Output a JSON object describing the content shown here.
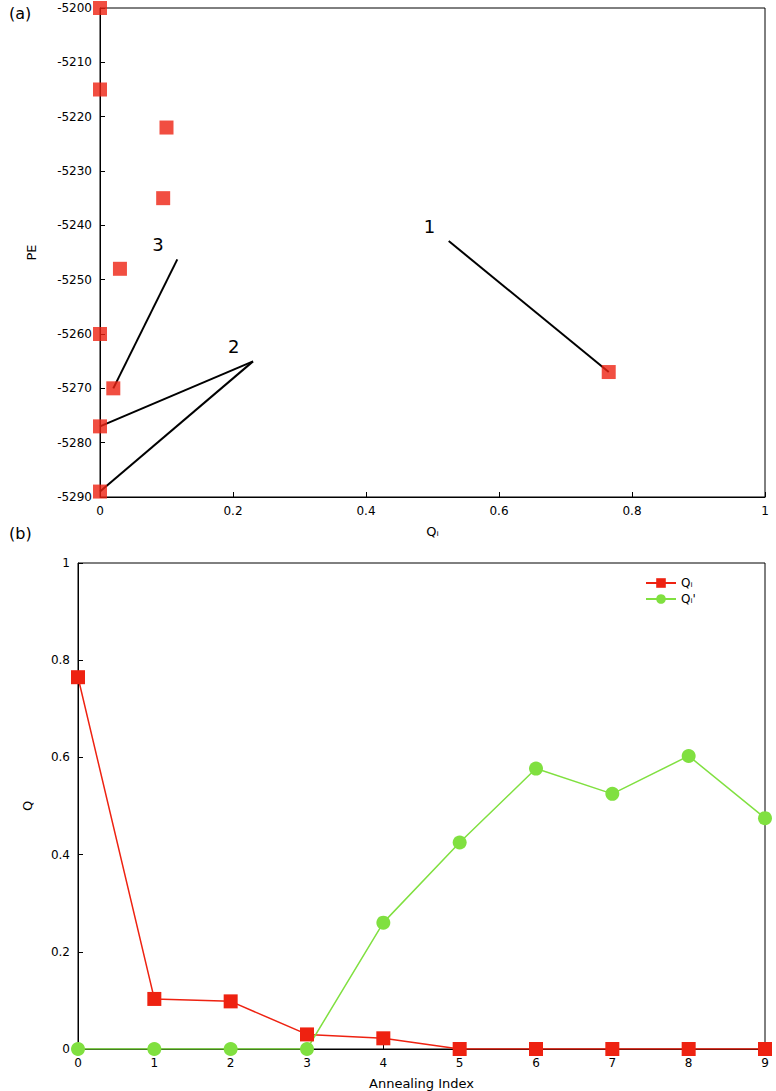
{
  "chart_data": [
    {
      "type": "scatter",
      "title": "(a)",
      "x_label": "Qᵢ",
      "y_label": "PE",
      "x": [
        0,
        0,
        0.1,
        0.095,
        0.03,
        0,
        0.02,
        0,
        0,
        0.765
      ],
      "values": [
        -5200,
        -5215,
        -5222,
        -5235,
        -5248,
        -5260,
        -5270,
        -5277,
        -5289,
        -5267
      ],
      "color": "#ee2211",
      "marker": "square",
      "xlim": [
        0,
        1
      ],
      "xticks": [
        0,
        0.2,
        0.4,
        0.6,
        0.8,
        1
      ],
      "ylim": [
        -5290,
        -5200
      ],
      "yticks": [
        -5290,
        -5280,
        -5270,
        -5260,
        -5250,
        -5240,
        -5230,
        -5220,
        -5210,
        -5200
      ],
      "annotations": [
        {
          "text": "1",
          "points": [
            [
              0.765,
              -5267
            ]
          ]
        },
        {
          "text": "2",
          "points": [
            [
              0,
              -5277
            ],
            [
              0,
              -5289
            ]
          ]
        },
        {
          "text": "3",
          "points": [
            [
              0.02,
              -5270
            ]
          ]
        }
      ]
    },
    {
      "type": "line",
      "title": "(b)",
      "x_label": "Annealing Index",
      "y_label": "Q",
      "x": [
        0,
        1,
        2,
        3,
        4,
        5,
        6,
        7,
        8,
        9
      ],
      "series": [
        {
          "name": "Qᵢ",
          "color": "#ee2211",
          "marker": "square",
          "values": [
            0.765,
            0.103,
            0.098,
            0.03,
            0.022,
            0,
            0,
            0,
            0,
            0
          ]
        },
        {
          "name": "Qᵢ'",
          "color": "#80e040",
          "marker": "circle",
          "values": [
            0,
            0,
            0,
            0,
            0.26,
            0.425,
            0.577,
            0.525,
            0.603,
            0.475
          ]
        }
      ],
      "xlim": [
        0,
        9
      ],
      "xticks": [
        0,
        1,
        2,
        3,
        4,
        5,
        6,
        7,
        8,
        9
      ],
      "ylim": [
        0,
        1
      ],
      "yticks": [
        0,
        0.2,
        0.4,
        0.6,
        0.8,
        1
      ],
      "legend": "upper right"
    }
  ]
}
